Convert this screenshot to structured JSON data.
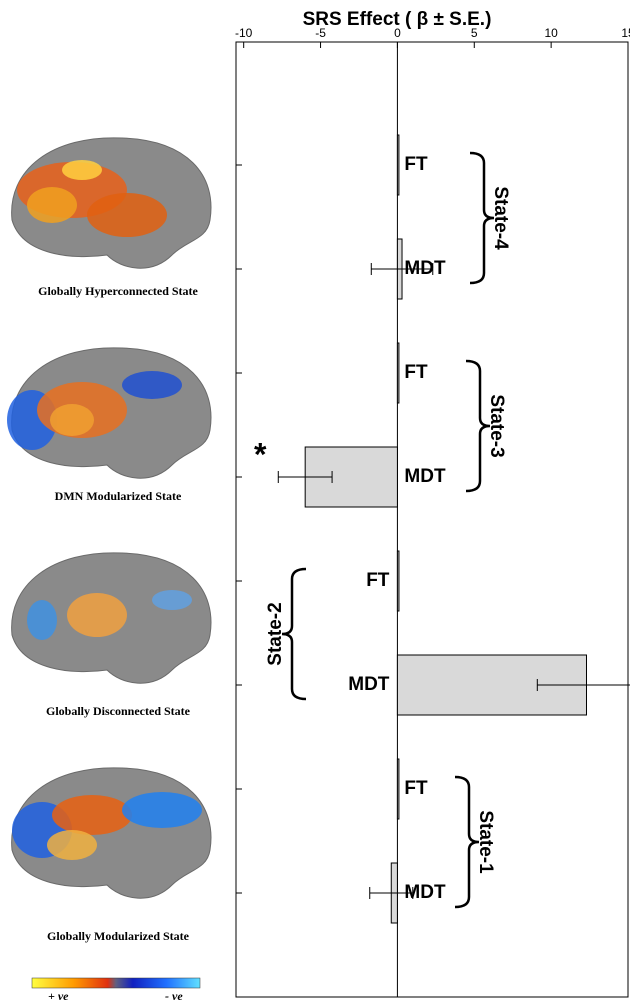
{
  "chart_data": {
    "type": "bar",
    "orientation": "horizontal",
    "title": "SRS Effect ( β ± S.E.)",
    "categories": [
      "FT",
      "MDT",
      "FT",
      "MDT",
      "FT",
      "MDT",
      "FT",
      "MDT"
    ],
    "values": [
      0.05,
      0.3,
      0.05,
      -6.0,
      0.1,
      12.3,
      0.05,
      -0.4
    ],
    "errors": [
      null,
      2.0,
      null,
      1.75,
      null,
      3.2,
      null,
      1.4
    ],
    "significance": [
      null,
      null,
      null,
      "*",
      null,
      "*",
      null,
      null
    ],
    "groups": [
      "State-4",
      "State-3",
      "State-2",
      "State-1"
    ],
    "color": "#d9d9d9",
    "xlim": [
      -10.5,
      15
    ],
    "xticks": [
      -10,
      -5,
      0,
      5,
      10,
      15
    ]
  },
  "brain_panels": [
    "Globally Hyperconnected State",
    "DMN Modularized State",
    "Globally Disconnected State",
    "Globally Modularized State"
  ],
  "colorbar": {
    "high": "+ ve",
    "low": "- ve"
  }
}
